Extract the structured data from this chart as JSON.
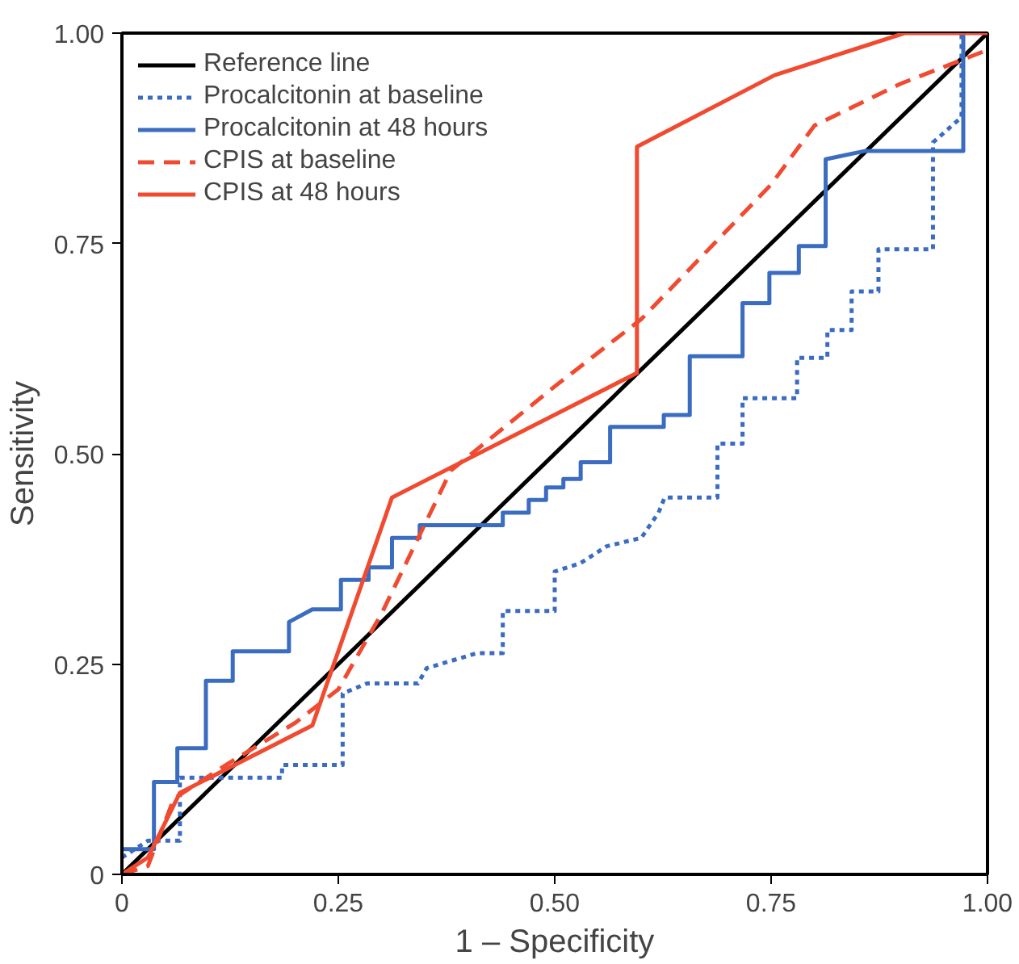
{
  "chart_data": {
    "type": "line",
    "xlabel": "1 – Specificity",
    "ylabel": "Sensitivity",
    "xlim": [
      0,
      1
    ],
    "ylim": [
      0,
      1
    ],
    "xticks": [
      {
        "value": 0,
        "label": "0"
      },
      0.25,
      {
        "value": 0.5,
        "label": "0.50"
      },
      0.75,
      {
        "value": 1,
        "label": "1.00"
      }
    ],
    "yticks": [
      {
        "value": 0,
        "label": "0"
      },
      0.25,
      {
        "value": 0.5,
        "label": "0.50"
      },
      0.75,
      {
        "value": 1,
        "label": "1.00"
      }
    ],
    "grid": false,
    "legend": "top left",
    "marker": "none",
    "series": [
      {
        "name": "Reference line",
        "color": "#000000",
        "line_style": "solid",
        "x": [
          0,
          1
        ],
        "values": [
          0,
          1
        ]
      },
      {
        "name": "Procalcitonin at baseline",
        "color": "#3a6cc0",
        "line_style": "dotted",
        "x": [
          0,
          0.03,
          0.067,
          0.067,
          0.185,
          0.185,
          0.255,
          0.255,
          0.283,
          0.342,
          0.352,
          0.41,
          0.44,
          0.44,
          0.5,
          0.5,
          0.53,
          0.56,
          0.6,
          0.62,
          0.627,
          0.688,
          0.688,
          0.717,
          0.717,
          0.78,
          0.78,
          0.815,
          0.815,
          0.843,
          0.843,
          0.874,
          0.874,
          0.937,
          0.937,
          0.97,
          0.97
        ],
        "values": [
          0.02,
          0.04,
          0.04,
          0.115,
          0.115,
          0.13,
          0.13,
          0.215,
          0.227,
          0.227,
          0.245,
          0.263,
          0.263,
          0.313,
          0.313,
          0.36,
          0.37,
          0.39,
          0.4,
          0.43,
          0.448,
          0.448,
          0.512,
          0.512,
          0.566,
          0.566,
          0.614,
          0.614,
          0.647,
          0.647,
          0.693,
          0.693,
          0.743,
          0.743,
          0.87,
          0.9,
          1.0
        ]
      },
      {
        "name": "Procalcitonin at 48 hours",
        "color": "#3a6cc0",
        "line_style": "solid",
        "x": [
          0,
          0.037,
          0.037,
          0.064,
          0.064,
          0.097,
          0.097,
          0.128,
          0.128,
          0.193,
          0.193,
          0.22,
          0.253,
          0.253,
          0.285,
          0.285,
          0.312,
          0.312,
          0.344,
          0.344,
          0.44,
          0.44,
          0.47,
          0.47,
          0.49,
          0.49,
          0.51,
          0.51,
          0.53,
          0.53,
          0.564,
          0.564,
          0.626,
          0.626,
          0.656,
          0.656,
          0.717,
          0.717,
          0.748,
          0.748,
          0.782,
          0.782,
          0.813,
          0.813,
          0.859,
          0.972,
          0.972
        ],
        "values": [
          0.03,
          0.03,
          0.11,
          0.11,
          0.15,
          0.15,
          0.23,
          0.23,
          0.265,
          0.265,
          0.3,
          0.315,
          0.315,
          0.35,
          0.35,
          0.365,
          0.365,
          0.4,
          0.4,
          0.415,
          0.415,
          0.43,
          0.43,
          0.445,
          0.445,
          0.46,
          0.46,
          0.47,
          0.47,
          0.49,
          0.49,
          0.532,
          0.532,
          0.546,
          0.546,
          0.616,
          0.616,
          0.679,
          0.679,
          0.715,
          0.715,
          0.747,
          0.747,
          0.85,
          0.86,
          0.86,
          1.0
        ]
      },
      {
        "name": "CPIS at baseline",
        "color": "#f04a30",
        "line_style": "dashed",
        "x": [
          0,
          0.03,
          0.06,
          0.12,
          0.2,
          0.25,
          0.3,
          0.38,
          0.5,
          0.6,
          0.75,
          0.8,
          0.9,
          1.0
        ],
        "values": [
          0,
          0.01,
          0.09,
          0.13,
          0.18,
          0.22,
          0.31,
          0.48,
          0.58,
          0.66,
          0.82,
          0.89,
          0.94,
          0.98
        ]
      },
      {
        "name": "CPIS at 48 hours",
        "color": "#f04a30",
        "line_style": "solid",
        "x": [
          0,
          0.03,
          0.067,
          0.22,
          0.312,
          0.595,
          0.595,
          0.754,
          0.904,
          1.0
        ],
        "values": [
          0,
          0.02,
          0.097,
          0.177,
          0.448,
          0.596,
          0.865,
          0.95,
          1.0,
          1.0
        ]
      }
    ]
  }
}
